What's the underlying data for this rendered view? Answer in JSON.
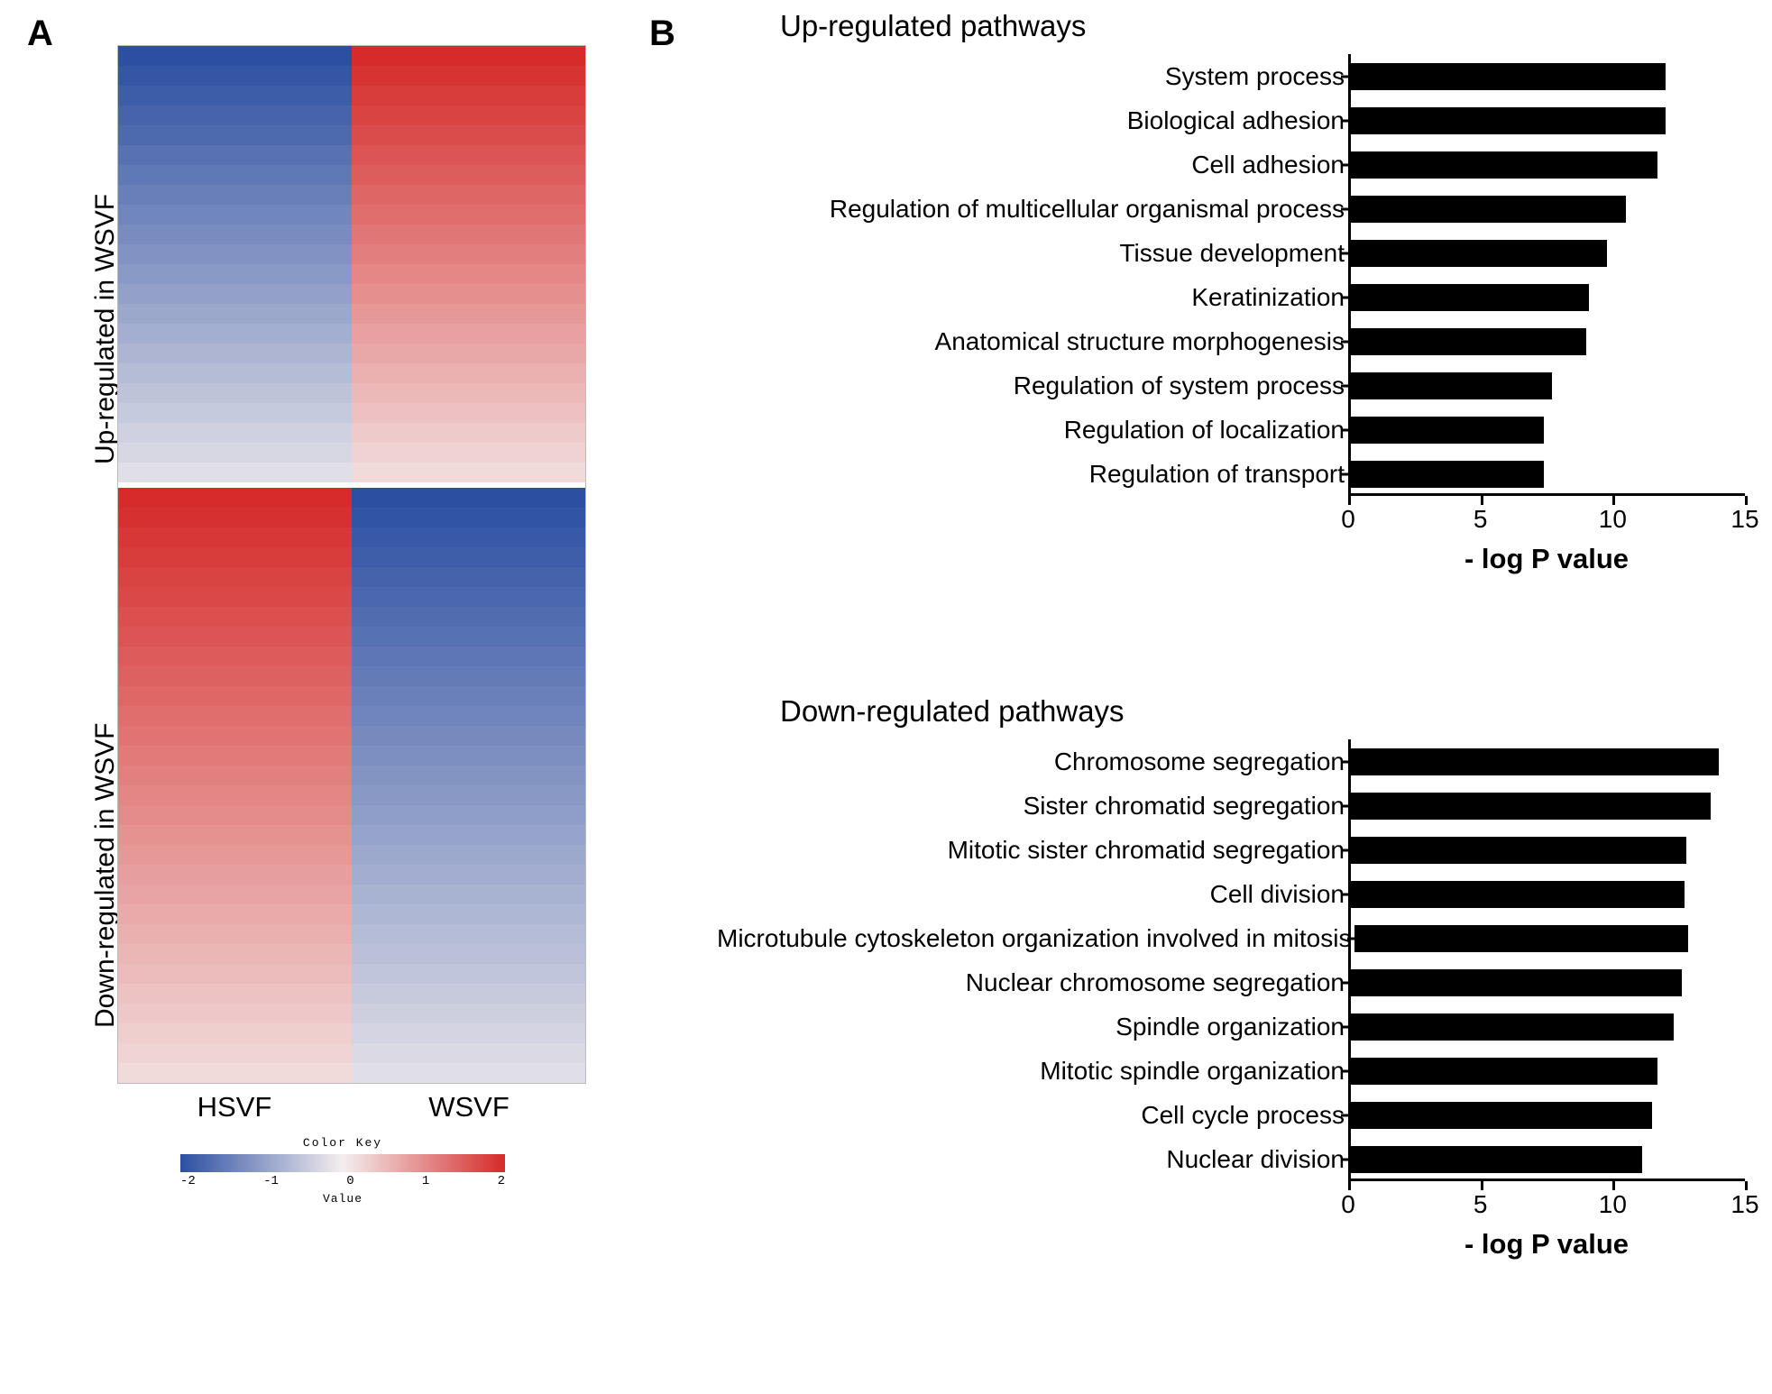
{
  "panelA": {
    "letter": "A",
    "rot_up_label": "Up-regulated in WSVF",
    "rot_down_label": "Down-regulated in WSVF",
    "col1_label": "HSVF",
    "col2_label": "WSVF",
    "heatmap": {
      "type": "heatmap",
      "up_rows": 22,
      "down_rows": 30,
      "color_blue": "#2c4fa2",
      "color_white": "#f4eeee",
      "color_red": "#d52b2a",
      "border_color": "#bbbbbb"
    },
    "colorkey": {
      "title": "Color Key",
      "ticks": [
        "-2",
        "-1",
        "0",
        "1",
        "2"
      ],
      "value_label": "Value",
      "color_left": "#2c4fa2",
      "color_mid": "#f4eeee",
      "color_right": "#d52b2a"
    }
  },
  "panelB": {
    "letter": "B",
    "axis_color": "#000000",
    "bar_color": "#000000",
    "tick_color": "#000000",
    "charts": [
      {
        "title": "Up-regulated pathways",
        "xmax": 15,
        "xticks": [
          0,
          5,
          10,
          15
        ],
        "xlabel": "- log P value",
        "bars": [
          {
            "label": "System process",
            "value": 12.0
          },
          {
            "label": "Biological adhesion",
            "value": 12.0
          },
          {
            "label": "Cell adhesion",
            "value": 11.7
          },
          {
            "label": "Regulation of multicellular organismal process",
            "value": 10.5
          },
          {
            "label": "Tissue development",
            "value": 9.8
          },
          {
            "label": "Keratinization",
            "value": 9.1
          },
          {
            "label": "Anatomical structure morphogenesis",
            "value": 9.0
          },
          {
            "label": "Regulation of system process",
            "value": 7.7
          },
          {
            "label": "Regulation of localization",
            "value": 7.4
          },
          {
            "label": "Regulation of transport",
            "value": 7.4
          }
        ]
      },
      {
        "title": "Down-regulated pathways",
        "xmax": 15,
        "xticks": [
          0,
          5,
          10,
          15
        ],
        "xlabel": "- log P value",
        "bars": [
          {
            "label": "Chromosome segregation",
            "value": 14.0
          },
          {
            "label": "Sister chromatid segregation",
            "value": 13.7
          },
          {
            "label": "Mitotic sister chromatid segregation",
            "value": 12.8
          },
          {
            "label": "Cell division",
            "value": 12.7
          },
          {
            "label": "Microtubule cytoskeleton organization involved in mitosis",
            "value": 12.6
          },
          {
            "label": "Nuclear chromosome segregation",
            "value": 12.6
          },
          {
            "label": "Spindle organization",
            "value": 12.3
          },
          {
            "label": "Mitotic spindle organization",
            "value": 11.7
          },
          {
            "label": "Cell cycle process",
            "value": 11.5
          },
          {
            "label": "Nuclear division",
            "value": 11.1
          }
        ]
      }
    ]
  }
}
